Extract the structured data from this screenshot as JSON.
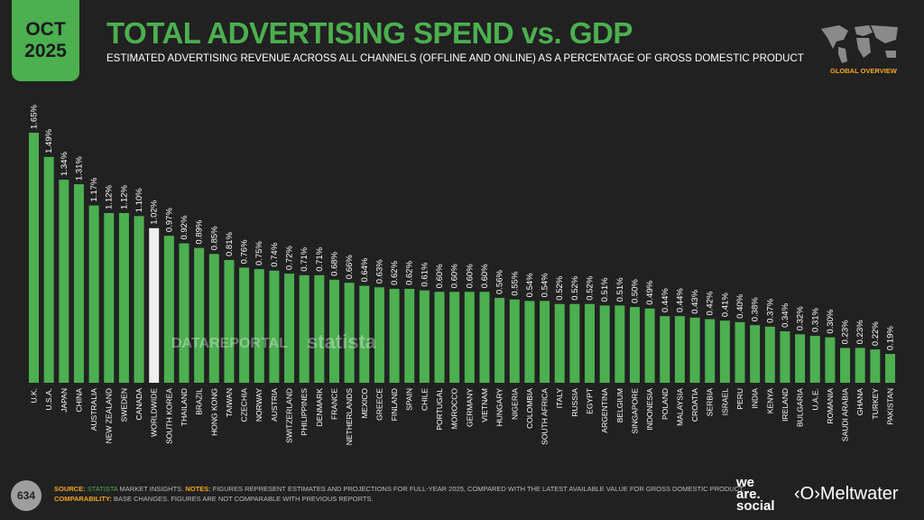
{
  "header": {
    "month": "OCT",
    "year": "2025",
    "title": "TOTAL ADVERTISING SPEND vs. GDP",
    "subtitle": "ESTIMATED ADVERTISING REVENUE ACROSS ALL CHANNELS (OFFLINE AND ONLINE) AS A PERCENTAGE OF GROSS DOMESTIC PRODUCT",
    "section": "GLOBAL OVERVIEW",
    "map_icon": "world-map-icon"
  },
  "watermarks": {
    "datareportal": "DATAREPORTAL",
    "statista": "statista"
  },
  "chart_data": {
    "type": "bar",
    "title": "TOTAL ADVERTISING SPEND vs. GDP",
    "xlabel": "",
    "ylabel": "",
    "value_suffix": "%",
    "ylim": [
      0,
      1.65
    ],
    "grid": false,
    "colors": {
      "bar": "#4caf50",
      "highlight": "#eeeeee"
    },
    "highlight": "WORLDWIDE",
    "categories": [
      "U.K.",
      "U.S.A.",
      "JAPAN",
      "CHINA",
      "AUSTRALIA",
      "NEW ZEALAND",
      "SWEDEN",
      "CANADA",
      "WORLDWIDE",
      "SOUTH KOREA",
      "THAILAND",
      "BRAZIL",
      "HONG KONG",
      "TAIWAN",
      "CZECHIA",
      "NORWAY",
      "AUSTRIA",
      "SWITZERLAND",
      "PHILIPPINES",
      "DENMARK",
      "FRANCE",
      "NETHERLANDS",
      "MEXICO",
      "GREECE",
      "FINLAND",
      "SPAIN",
      "CHILE",
      "PORTUGAL",
      "MOROCCO",
      "GERMANY",
      "VIETNAM",
      "HUNGARY",
      "NIGERIA",
      "COLOMBIA",
      "SOUTH AFRICA",
      "ITALY",
      "RUSSIA",
      "EGYPT",
      "ARGENTINA",
      "BELGIUM",
      "SINGAPORE",
      "INDONESIA",
      "POLAND",
      "MALAYSIA",
      "CROATIA",
      "SERBIA",
      "ISRAEL",
      "PERU",
      "INDIA",
      "KENYA",
      "IRELAND",
      "BULGARIA",
      "U.A.E.",
      "ROMANIA",
      "SAUDI ARABIA",
      "GHANA",
      "TURKEY",
      "PAKISTAN"
    ],
    "values": [
      1.65,
      1.49,
      1.34,
      1.31,
      1.17,
      1.12,
      1.12,
      1.1,
      1.02,
      0.97,
      0.92,
      0.89,
      0.85,
      0.81,
      0.76,
      0.75,
      0.74,
      0.72,
      0.71,
      0.71,
      0.68,
      0.66,
      0.64,
      0.63,
      0.62,
      0.62,
      0.61,
      0.6,
      0.6,
      0.6,
      0.6,
      0.56,
      0.55,
      0.54,
      0.54,
      0.52,
      0.52,
      0.52,
      0.51,
      0.51,
      0.5,
      0.49,
      0.44,
      0.44,
      0.43,
      0.42,
      0.41,
      0.4,
      0.38,
      0.37,
      0.34,
      0.32,
      0.31,
      0.3,
      0.23,
      0.23,
      0.22,
      0.19
    ]
  },
  "footer": {
    "page": "634",
    "source_label": "SOURCE:",
    "source_brand": "STATISTA",
    "source_text": " MARKET INSIGHTS. ",
    "notes_label": "NOTES:",
    "notes_text": " FIGURES REPRESENT ESTIMATES AND PROJECTIONS FOR FULL-YEAR 2025, COMPARED WITH THE LATEST AVAILABLE VALUE FOR GROSS DOMESTIC PRODUCT.",
    "comp_label": "COMPARABILITY:",
    "comp_text": " BASE CHANGES. FIGURES ARE NOT COMPARABLE WITH PREVIOUS REPORTS.",
    "logo1": "we are. social",
    "logo2": "Meltwater"
  }
}
